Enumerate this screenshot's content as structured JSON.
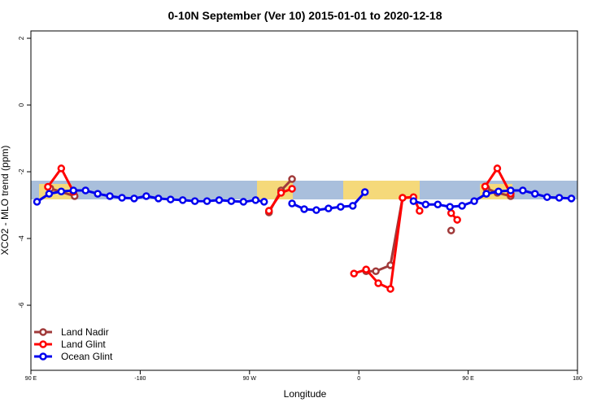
{
  "chart_data": {
    "type": "line",
    "title": "0-10N September (Ver 10)   2015-01-01 to 2020-12-18",
    "x_label": "Longitude",
    "y_label": "XCO2 - MLO trend (ppm)",
    "xlim": [
      -270,
      180
    ],
    "xticks": [
      {
        "value": -270,
        "label": "90 E"
      },
      -180,
      {
        "value": -90,
        "label": "90 W"
      },
      0,
      {
        "value": 90,
        "label": "90 E"
      },
      180
    ],
    "ylim": [
      -7.95,
      2.22
    ],
    "yticks": [
      2,
      0,
      -2,
      -4,
      -6
    ],
    "legend": "bottom-left",
    "series": [
      {
        "name": "Land Nadir",
        "color": "#a03a3a",
        "x": [
          -254,
          -234,
          null,
          -74,
          -64,
          -55,
          null,
          6,
          14,
          26,
          36,
          null,
          76,
          null,
          105,
          114,
          125
        ],
        "values": [
          -2.5,
          -2.73,
          null,
          -3.22,
          -2.56,
          -2.22,
          null,
          -4.98,
          -4.98,
          -4.8,
          -2.78,
          null,
          -3.76,
          null,
          -2.5,
          -2.63,
          -2.73
        ]
      },
      {
        "name": "Land Glint",
        "color": "#ff0000",
        "x": [
          -256,
          -245,
          -235,
          null,
          -74,
          -64,
          -55,
          null,
          -4,
          6,
          16,
          26,
          36,
          45,
          50,
          null,
          76,
          81,
          null,
          104,
          114,
          125
        ],
        "values": [
          -2.45,
          -1.9,
          -2.6,
          null,
          -3.17,
          -2.63,
          -2.51,
          null,
          -5.05,
          -4.93,
          -5.34,
          -5.51,
          -2.78,
          -2.76,
          -3.17,
          null,
          -3.24,
          -3.44,
          null,
          -2.44,
          -1.9,
          -2.66
        ]
      },
      {
        "name": "Ocean Glint",
        "color": "#0000ee",
        "x": [
          -265,
          -255,
          -245,
          -235,
          -225,
          -215,
          -205,
          -195,
          -185,
          -175,
          -165,
          -155,
          -145,
          -135,
          -125,
          -115,
          -105,
          -95,
          -85,
          -78,
          null,
          -55,
          -45,
          -35,
          -25,
          -15,
          -5,
          5,
          null,
          45,
          55,
          65,
          75,
          85,
          95,
          105,
          115,
          125,
          135,
          145,
          155,
          165,
          175
        ],
        "values": [
          -2.9,
          -2.66,
          -2.59,
          -2.56,
          -2.56,
          -2.66,
          -2.73,
          -2.78,
          -2.8,
          -2.73,
          -2.8,
          -2.83,
          -2.85,
          -2.88,
          -2.88,
          -2.85,
          -2.88,
          -2.9,
          -2.85,
          -2.9,
          null,
          -2.95,
          -3.12,
          -3.15,
          -3.1,
          -3.05,
          -3.02,
          -2.61,
          null,
          -2.88,
          -2.98,
          -2.98,
          -3.05,
          -3.02,
          -2.88,
          -2.66,
          -2.59,
          -2.56,
          -2.56,
          -2.66,
          -2.76,
          -2.78,
          -2.8
        ]
      }
    ]
  }
}
